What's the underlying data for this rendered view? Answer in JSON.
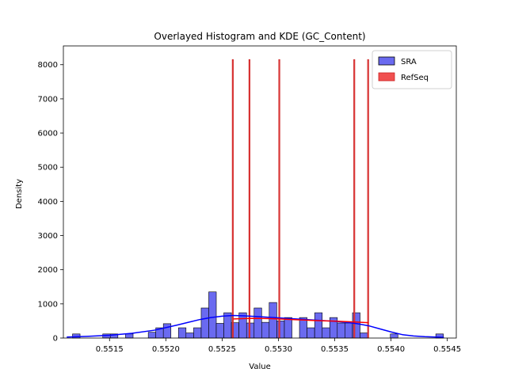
{
  "chart_data": {
    "type": "bar",
    "title": "Overlayed Histogram and KDE (GC_Content)",
    "xlabel": "Value",
    "ylabel": "Density",
    "xlim": [
      0.55109,
      0.55458
    ],
    "ylim": [
      0,
      8550
    ],
    "x_ticks": [
      0.5515,
      0.552,
      0.5525,
      0.553,
      0.5535,
      0.554,
      0.5545
    ],
    "x_tick_labels": [
      "0.5515",
      "0.5520",
      "0.5525",
      "0.5530",
      "0.5535",
      "0.5540",
      "0.5545"
    ],
    "y_ticks": [
      0,
      1000,
      2000,
      3000,
      4000,
      5000,
      6000,
      7000,
      8000
    ],
    "y_tick_labels": [
      "0",
      "1000",
      "2000",
      "3000",
      "4000",
      "5000",
      "6000",
      "7000",
      "8000"
    ],
    "grid": false,
    "legend_position": "top-right",
    "series": [
      {
        "name": "SRA",
        "kind": "histogram",
        "color": "#0000ff",
        "fill": "#6a6af0",
        "bin_width": 6.72e-05,
        "bin_starts": [
          0.551171,
          0.55144,
          0.551507,
          0.551642,
          0.551844,
          0.551911,
          0.551978,
          0.552112,
          0.552179,
          0.552247,
          0.552314,
          0.552381,
          0.552448,
          0.552515,
          0.552582,
          0.55265,
          0.552717,
          0.552784,
          0.552851,
          0.552918,
          0.552986,
          0.553053,
          0.553187,
          0.553254,
          0.553322,
          0.553389,
          0.553456,
          0.553523,
          0.55359,
          0.553658,
          0.553725,
          0.553994,
          0.554398
        ],
        "values": [
          120,
          120,
          120,
          120,
          170,
          300,
          420,
          300,
          150,
          300,
          880,
          1350,
          430,
          740,
          450,
          740,
          440,
          880,
          460,
          1040,
          500,
          600,
          600,
          300,
          740,
          300,
          600,
          440,
          440,
          740,
          150,
          120,
          120
        ]
      },
      {
        "name": "RefSeq",
        "kind": "histogram",
        "color": "#cc2222",
        "fill": "#f05050",
        "bin_width": 9.5e-06,
        "bin_starts": [
          0.55259,
          0.552738,
          0.553003,
          0.553669,
          0.553792
        ],
        "values": [
          8150,
          8150,
          8150,
          8150,
          8150
        ]
      },
      {
        "name": "SRA KDE",
        "kind": "kde",
        "color": "#0000ff",
        "x": [
          0.55112,
          0.5513,
          0.5515,
          0.5517,
          0.5519,
          0.5521,
          0.5522,
          0.5523,
          0.5524,
          0.5525,
          0.5526,
          0.5527,
          0.5528,
          0.5529,
          0.553,
          0.5531,
          0.5532,
          0.5533,
          0.5534,
          0.5535,
          0.5536,
          0.5537,
          0.5538,
          0.5539,
          0.554,
          0.5541,
          0.5542,
          0.5543,
          0.5544,
          0.55447
        ],
        "y": [
          30,
          50,
          80,
          140,
          230,
          380,
          460,
          540,
          600,
          640,
          660,
          650,
          630,
          610,
          590,
          570,
          550,
          530,
          510,
          490,
          460,
          420,
          360,
          270,
          180,
          100,
          60,
          40,
          30,
          20
        ]
      },
      {
        "name": "RefSeq KDE",
        "kind": "kde",
        "color": "#ff0000",
        "x": [
          0.5526,
          0.5527,
          0.5528,
          0.5529,
          0.553,
          0.5531,
          0.5532,
          0.5533,
          0.5534,
          0.5535,
          0.5536,
          0.5537,
          0.5538
        ],
        "y": [
          560,
          570,
          575,
          570,
          560,
          545,
          530,
          515,
          505,
          495,
          480,
          465,
          450
        ]
      }
    ],
    "legend": [
      {
        "label": "SRA",
        "fill": "#6a6af0",
        "edge": "#000000"
      },
      {
        "label": "RefSeq",
        "fill": "#f05050",
        "edge": "#cc2222"
      }
    ]
  }
}
